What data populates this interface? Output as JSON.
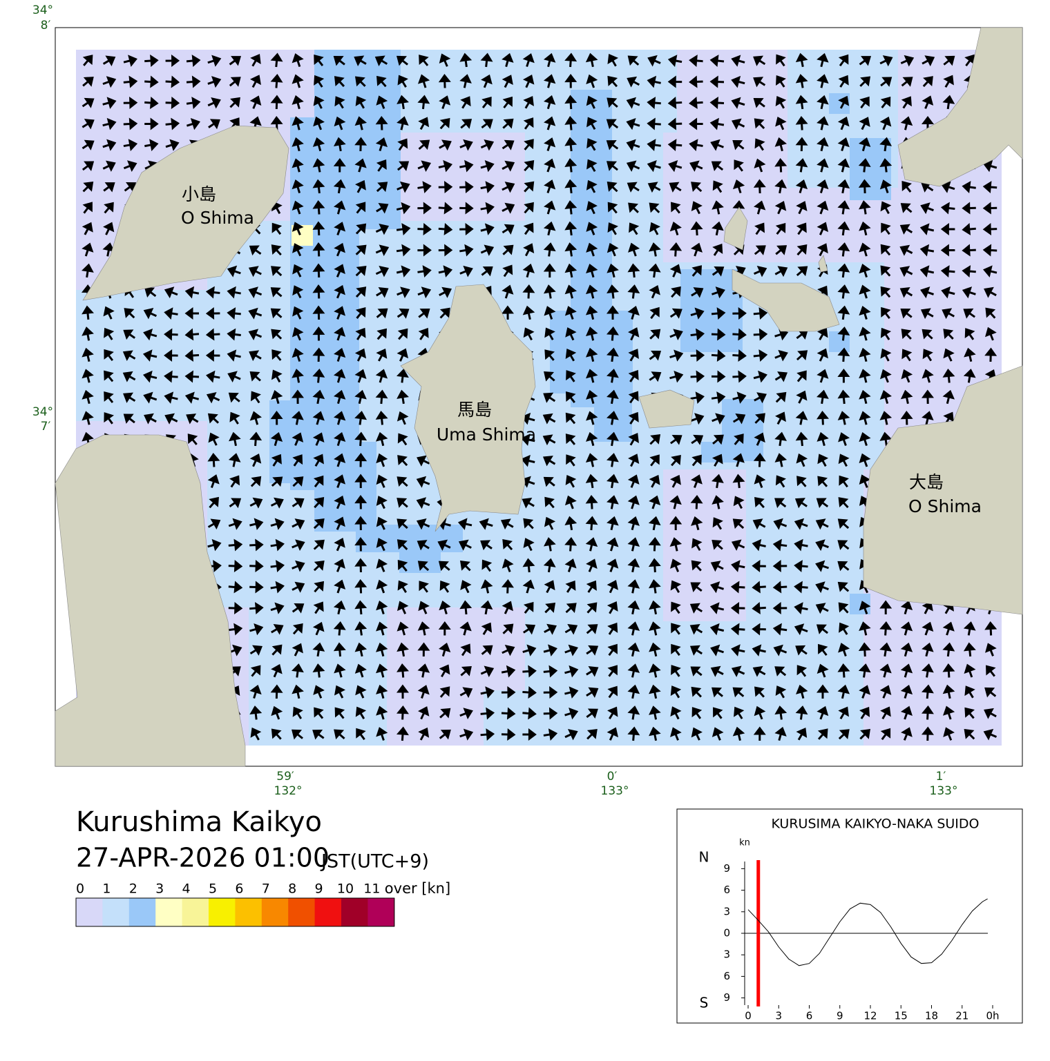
{
  "title": "Kurushima Kaikyo",
  "datetime": "27-APR-2026 01:00",
  "timezone": "JST(UTC+9)",
  "map": {
    "place_labels": [
      "小島",
      "O Shima",
      "馬島",
      "Uma Shima",
      "大島",
      "O Shima"
    ],
    "lat_labels": [
      "34°",
      "8′",
      "34°",
      "7′"
    ],
    "lon_labels": [
      "59′",
      "132°",
      "0′",
      "133°",
      "1′",
      "133°"
    ]
  },
  "legend": {
    "ticks": [
      0,
      1,
      2,
      3,
      4,
      5,
      6,
      7,
      8,
      9,
      10,
      11
    ],
    "unit": "over [kn]",
    "colors": [
      "#d8d8f8",
      "#c4e0fa",
      "#9ac8f8",
      "#ffffc4",
      "#f8f498",
      "#f8f000",
      "#fcc000",
      "#f88800",
      "#f05000",
      "#f01010",
      "#a00028",
      "#b00058"
    ]
  },
  "chart_data": {
    "type": "line",
    "title": "KURUSIMA KAIKYO-NAKA SUIDO",
    "y_unit": "kn",
    "north": "N",
    "south": "S",
    "x": [
      0,
      1,
      2,
      3,
      4,
      5,
      6,
      7,
      8,
      9,
      10,
      11,
      12,
      13,
      14,
      15,
      16,
      17,
      18,
      19,
      20,
      21,
      22,
      23,
      23.5
    ],
    "values": [
      3.3,
      1.8,
      0.2,
      -1.9,
      -3.6,
      -4.5,
      -4.2,
      -2.8,
      -0.6,
      1.6,
      3.4,
      4.2,
      4.0,
      2.9,
      0.9,
      -1.4,
      -3.3,
      -4.2,
      -4.1,
      -2.9,
      -1.0,
      1.2,
      3.1,
      4.4,
      4.8
    ],
    "color": "#000000",
    "marker_x": 1,
    "marker_color": "#ff0000",
    "xlim": [
      0,
      24
    ],
    "ylim": [
      -10,
      10
    ],
    "xticks": [
      0,
      3,
      6,
      9,
      12,
      15,
      18,
      21,
      {
        "value": 24,
        "label": "0h"
      }
    ],
    "yticks": [
      9,
      6,
      3,
      0,
      {
        "value": -3,
        "label": "3"
      },
      {
        "value": -6,
        "label": "6"
      },
      {
        "value": -9,
        "label": "9"
      }
    ]
  }
}
